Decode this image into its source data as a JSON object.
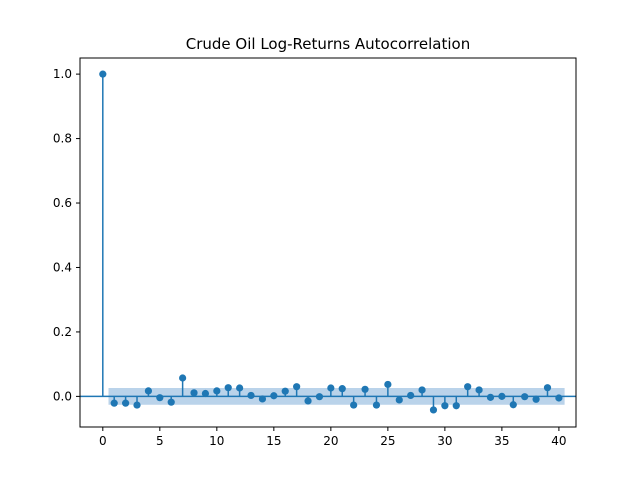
{
  "chart_data": {
    "type": "stem",
    "title": "Crude Oil Log-Returns Autocorrelation",
    "xlabel": "",
    "ylabel": "",
    "xlim": [
      -2,
      41.5
    ],
    "ylim": [
      -0.095,
      1.05
    ],
    "xticks": [
      0,
      5,
      10,
      15,
      20,
      25,
      30,
      35,
      40
    ],
    "yticks": [
      0.0,
      0.2,
      0.4,
      0.6,
      0.8,
      1.0
    ],
    "xtick_labels": [
      "0",
      "5",
      "10",
      "15",
      "20",
      "25",
      "30",
      "35",
      "40"
    ],
    "ytick_labels": [
      "0.0",
      "0.2",
      "0.4",
      "0.6",
      "0.8",
      "1.0"
    ],
    "grid": false,
    "lags": [
      0,
      1,
      2,
      3,
      4,
      5,
      6,
      7,
      8,
      9,
      10,
      11,
      12,
      13,
      14,
      15,
      16,
      17,
      18,
      19,
      20,
      21,
      22,
      23,
      24,
      25,
      26,
      27,
      28,
      29,
      30,
      31,
      32,
      33,
      34,
      35,
      36,
      37,
      38,
      39,
      40
    ],
    "acf": [
      1.0,
      -0.021,
      -0.021,
      -0.027,
      0.017,
      -0.004,
      -0.018,
      0.057,
      0.011,
      0.009,
      0.017,
      0.027,
      0.026,
      0.003,
      -0.008,
      0.002,
      0.016,
      0.03,
      -0.014,
      -0.001,
      0.026,
      0.024,
      -0.027,
      0.022,
      -0.027,
      0.037,
      -0.011,
      0.003,
      0.02,
      -0.042,
      -0.029,
      -0.029,
      0.03,
      0.02,
      -0.003,
      0.0,
      -0.026,
      -0.001,
      -0.009,
      0.027,
      -0.005
    ],
    "confidence_band": 0.026,
    "colors": {
      "marker": "#1f77b4",
      "band": "#aecbe6"
    }
  }
}
